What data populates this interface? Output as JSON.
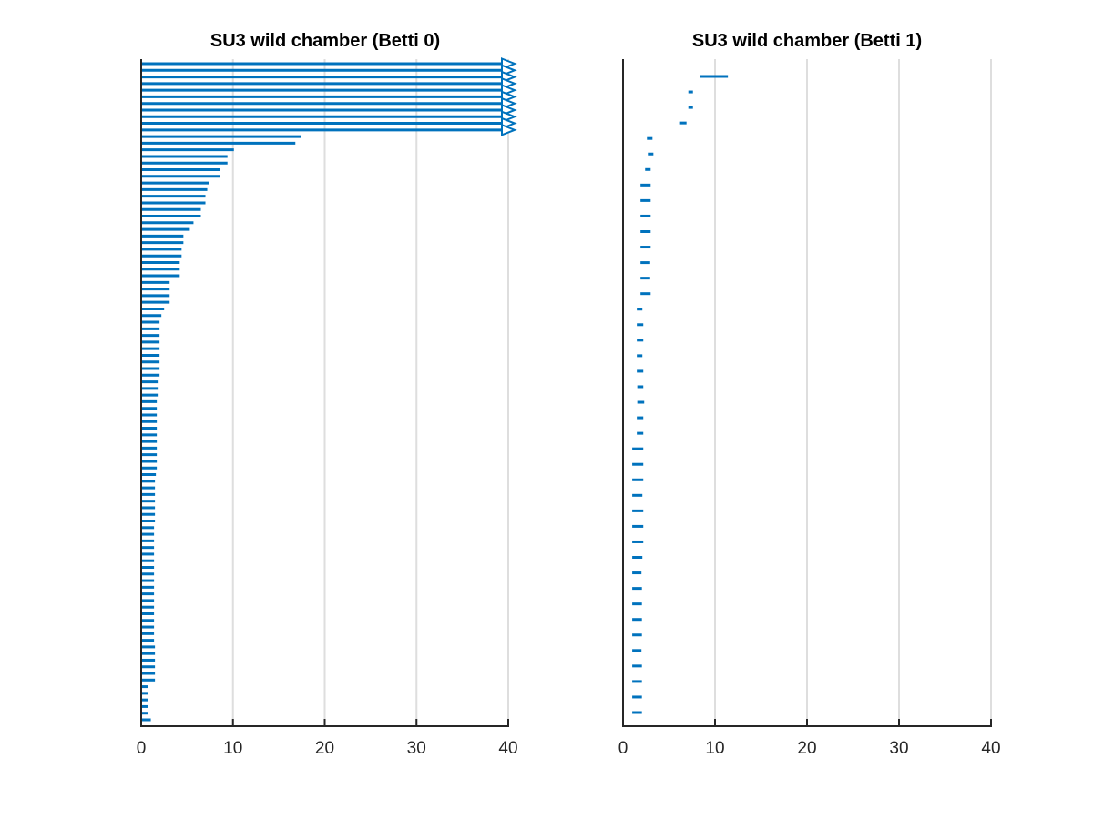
{
  "figure": {
    "background": "#ffffff",
    "bar_color": "#0072BD",
    "grid_color": "#dedede",
    "axis_color": "#262626",
    "title_color": "#000000",
    "tick_label_color": "#262626"
  },
  "chart_data": [
    {
      "type": "bar",
      "subtype": "persistence-barcode",
      "title": "SU3 wild chamber (Betti 0)",
      "xlabel": "",
      "ylabel": "",
      "xlim": [
        0,
        40
      ],
      "x_ticks": [
        0,
        10,
        20,
        30,
        40
      ],
      "x_tick_labels": [
        "0",
        "10",
        "20",
        "30",
        "40"
      ],
      "grid": true,
      "legend": null,
      "note": "bars are [birth, death]; death null means infinite (drawn as arrow at x=40)",
      "bars": [
        [
          0,
          null
        ],
        [
          0,
          null
        ],
        [
          0,
          null
        ],
        [
          0,
          null
        ],
        [
          0,
          null
        ],
        [
          0,
          null
        ],
        [
          0,
          null
        ],
        [
          0,
          null
        ],
        [
          0,
          null
        ],
        [
          0,
          null
        ],
        [
          0,
          null
        ],
        [
          0,
          17.4
        ],
        [
          0,
          16.8
        ],
        [
          0,
          10.1
        ],
        [
          0,
          9.4
        ],
        [
          0,
          9.4
        ],
        [
          0,
          8.6
        ],
        [
          0,
          8.6
        ],
        [
          0,
          7.4
        ],
        [
          0,
          7.2
        ],
        [
          0,
          7.0
        ],
        [
          0,
          7.0
        ],
        [
          0,
          6.5
        ],
        [
          0,
          6.5
        ],
        [
          0,
          5.7
        ],
        [
          0,
          5.3
        ],
        [
          0,
          4.6
        ],
        [
          0,
          4.6
        ],
        [
          0,
          4.4
        ],
        [
          0,
          4.4
        ],
        [
          0,
          4.2
        ],
        [
          0,
          4.2
        ],
        [
          0,
          4.2
        ],
        [
          0,
          3.1
        ],
        [
          0,
          3.1
        ],
        [
          0,
          3.1
        ],
        [
          0,
          3.1
        ],
        [
          0,
          2.5
        ],
        [
          0,
          2.2
        ],
        [
          0,
          2.0
        ],
        [
          0,
          2.0
        ],
        [
          0,
          2.0
        ],
        [
          0,
          2.0
        ],
        [
          0,
          2.0
        ],
        [
          0,
          2.0
        ],
        [
          0,
          2.0
        ],
        [
          0,
          2.0
        ],
        [
          0,
          2.0
        ],
        [
          0,
          1.9
        ],
        [
          0,
          1.9
        ],
        [
          0,
          1.9
        ],
        [
          0,
          1.7
        ],
        [
          0,
          1.7
        ],
        [
          0,
          1.7
        ],
        [
          0,
          1.7
        ],
        [
          0,
          1.7
        ],
        [
          0,
          1.7
        ],
        [
          0,
          1.7
        ],
        [
          0,
          1.7
        ],
        [
          0,
          1.7
        ],
        [
          0,
          1.7
        ],
        [
          0,
          1.7
        ],
        [
          0,
          1.6
        ],
        [
          0,
          1.5
        ],
        [
          0,
          1.5
        ],
        [
          0,
          1.5
        ],
        [
          0,
          1.5
        ],
        [
          0,
          1.5
        ],
        [
          0,
          1.5
        ],
        [
          0,
          1.5
        ],
        [
          0,
          1.4
        ],
        [
          0,
          1.4
        ],
        [
          0,
          1.4
        ],
        [
          0,
          1.4
        ],
        [
          0,
          1.4
        ],
        [
          0,
          1.4
        ],
        [
          0,
          1.4
        ],
        [
          0,
          1.4
        ],
        [
          0,
          1.4
        ],
        [
          0,
          1.4
        ],
        [
          0,
          1.4
        ],
        [
          0,
          1.4
        ],
        [
          0,
          1.4
        ],
        [
          0,
          1.4
        ],
        [
          0,
          1.4
        ],
        [
          0,
          1.4
        ],
        [
          0,
          1.4
        ],
        [
          0,
          1.4
        ],
        [
          0,
          1.5
        ],
        [
          0,
          1.5
        ],
        [
          0,
          1.5
        ],
        [
          0,
          1.5
        ],
        [
          0,
          1.5
        ],
        [
          0,
          1.5
        ],
        [
          0,
          0.75
        ],
        [
          0,
          0.75
        ],
        [
          0,
          0.75
        ],
        [
          0,
          0.75
        ],
        [
          0,
          0.75
        ],
        [
          0,
          1.05
        ]
      ]
    },
    {
      "type": "bar",
      "subtype": "persistence-barcode",
      "title": "SU3 wild chamber (Betti 1)",
      "xlabel": "",
      "ylabel": "",
      "xlim": [
        0,
        40
      ],
      "x_ticks": [
        0,
        10,
        20,
        30,
        40
      ],
      "x_tick_labels": [
        "0",
        "10",
        "20",
        "30",
        "40"
      ],
      "grid": true,
      "legend": null,
      "note": "bars are [birth, death]",
      "bars": [
        [
          8.4,
          11.4
        ],
        [
          7.1,
          7.6
        ],
        [
          7.1,
          7.6
        ],
        [
          6.2,
          6.9
        ],
        [
          2.6,
          3.2
        ],
        [
          2.7,
          3.3
        ],
        [
          2.4,
          3.0
        ],
        [
          1.9,
          3.0
        ],
        [
          1.9,
          3.0
        ],
        [
          1.9,
          3.0
        ],
        [
          1.9,
          3.0
        ],
        [
          1.9,
          3.0
        ],
        [
          1.9,
          2.95
        ],
        [
          1.9,
          2.95
        ],
        [
          1.9,
          3.0
        ],
        [
          1.5,
          2.1
        ],
        [
          1.5,
          2.2
        ],
        [
          1.5,
          2.2
        ],
        [
          1.5,
          2.1
        ],
        [
          1.5,
          2.2
        ],
        [
          1.55,
          2.2
        ],
        [
          1.55,
          2.3
        ],
        [
          1.5,
          2.2
        ],
        [
          1.5,
          2.2
        ],
        [
          1.0,
          2.2
        ],
        [
          1.0,
          2.2
        ],
        [
          1.0,
          2.2
        ],
        [
          1.0,
          2.1
        ],
        [
          1.0,
          2.2
        ],
        [
          1.0,
          2.2
        ],
        [
          1.0,
          2.2
        ],
        [
          1.0,
          2.1
        ],
        [
          1.0,
          2.0
        ],
        [
          1.0,
          2.05
        ],
        [
          1.0,
          2.05
        ],
        [
          1.0,
          2.05
        ],
        [
          1.0,
          2.05
        ],
        [
          1.0,
          2.0
        ],
        [
          1.0,
          2.05
        ],
        [
          1.0,
          2.05
        ],
        [
          1.0,
          2.05
        ],
        [
          1.0,
          2.05
        ]
      ]
    }
  ]
}
